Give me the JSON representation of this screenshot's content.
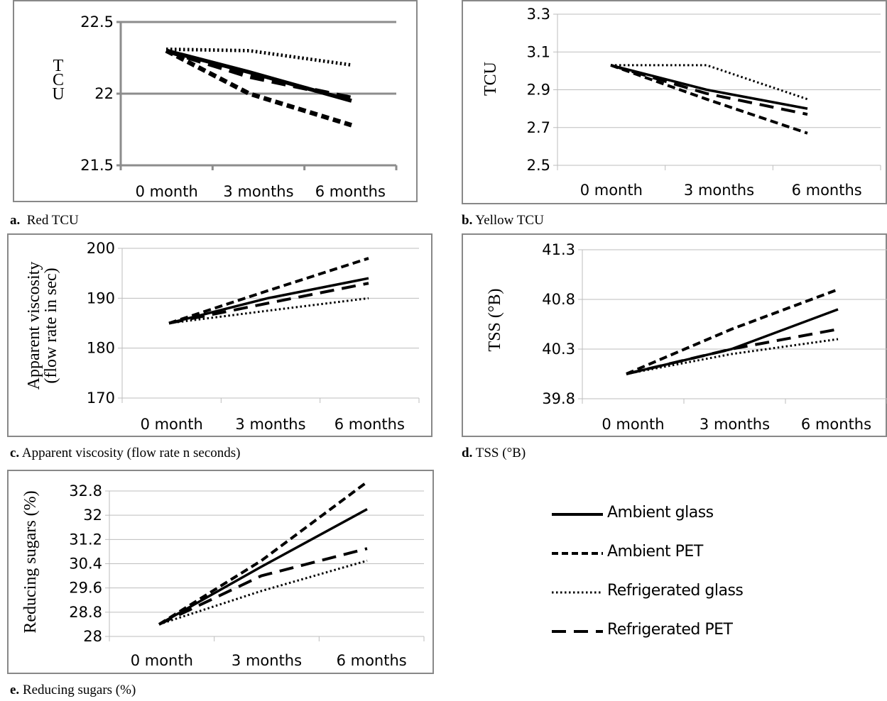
{
  "legend": [
    {
      "key": "ambient_glass",
      "label": "Ambient glass"
    },
    {
      "key": "ambient_pet",
      "label": "Ambient PET"
    },
    {
      "key": "refrigerated_glass",
      "label": "Refrigerated glass"
    },
    {
      "key": "refrigerated_pet",
      "label": "Refrigerated PET"
    }
  ],
  "chart_data": [
    {
      "id": "a",
      "type": "line",
      "caption_letter": "a.",
      "caption_text": "Red TCU",
      "ylabel": "TCU",
      "categories": [
        "0 month",
        "3 months",
        "6 months"
      ],
      "ylim": [
        21.5,
        22.5
      ],
      "yticks": [
        "21.5",
        "22",
        "22.5"
      ],
      "grid": true,
      "series": [
        {
          "name": "Ambient glass",
          "style": "solid",
          "values": [
            22.3,
            22.15,
            21.95
          ]
        },
        {
          "name": "Ambient PET",
          "style": "dash",
          "values": [
            22.3,
            22.0,
            21.78
          ]
        },
        {
          "name": "Refrigerated glass",
          "style": "dot",
          "values": [
            22.31,
            22.3,
            22.2
          ]
        },
        {
          "name": "Refrigerated PET",
          "style": "longdash",
          "values": [
            22.3,
            22.12,
            21.97
          ]
        }
      ]
    },
    {
      "id": "b",
      "type": "line",
      "caption_letter": "b.",
      "caption_text": "Yellow TCU",
      "ylabel": "TCU",
      "categories": [
        "0 month",
        "3 months",
        "6 months"
      ],
      "ylim": [
        2.5,
        3.3
      ],
      "yticks": [
        "2.5",
        "2.7",
        "2.9",
        "3.1",
        "3.3"
      ],
      "grid": true,
      "series": [
        {
          "name": "Ambient glass",
          "style": "solid",
          "values": [
            3.03,
            2.9,
            2.8
          ]
        },
        {
          "name": "Ambient PET",
          "style": "dash",
          "values": [
            3.03,
            2.85,
            2.67
          ]
        },
        {
          "name": "Refrigerated glass",
          "style": "dot",
          "values": [
            3.03,
            3.03,
            2.85
          ]
        },
        {
          "name": "Refrigerated PET",
          "style": "longdash",
          "values": [
            3.03,
            2.88,
            2.77
          ]
        }
      ]
    },
    {
      "id": "c",
      "type": "line",
      "caption_letter": "c.",
      "caption_text": "Apparent viscosity (flow rate n seconds)",
      "ylabel": "Apparent viscosity (flow rate in sec)",
      "categories": [
        "0 month",
        "3 months",
        "6 months"
      ],
      "ylim": [
        170,
        200
      ],
      "yticks": [
        "170",
        "180",
        "190",
        "200"
      ],
      "grid": true,
      "series": [
        {
          "name": "Ambient glass",
          "style": "solid",
          "values": [
            185,
            190,
            194
          ]
        },
        {
          "name": "Ambient PET",
          "style": "dash",
          "values": [
            185,
            191.5,
            198
          ]
        },
        {
          "name": "Refrigerated glass",
          "style": "dot",
          "values": [
            185,
            187.5,
            190
          ]
        },
        {
          "name": "Refrigerated PET",
          "style": "longdash",
          "values": [
            185,
            189,
            193
          ]
        }
      ]
    },
    {
      "id": "d",
      "type": "line",
      "caption_letter": "d.",
      "caption_text": "TSS (°B)",
      "ylabel": "TSS (°B)",
      "categories": [
        "0 month",
        "3 months",
        "6 months"
      ],
      "ylim": [
        39.8,
        41.3
      ],
      "yticks": [
        "39.8",
        "40.3",
        "40.8",
        "41.3"
      ],
      "grid": true,
      "series": [
        {
          "name": "Ambient glass",
          "style": "solid",
          "values": [
            40.05,
            40.3,
            40.7
          ]
        },
        {
          "name": "Ambient PET",
          "style": "dash",
          "values": [
            40.05,
            40.5,
            40.9
          ]
        },
        {
          "name": "Refrigerated glass",
          "style": "dot",
          "values": [
            40.05,
            40.25,
            40.4
          ]
        },
        {
          "name": "Refrigerated PET",
          "style": "longdash",
          "values": [
            40.05,
            40.3,
            40.5
          ]
        }
      ]
    },
    {
      "id": "e",
      "type": "line",
      "caption_letter": "e.",
      "caption_text": "Reducing sugars (%)",
      "ylabel": "Reducing sugars (%)",
      "categories": [
        "0 month",
        "3 months",
        "6 months"
      ],
      "ylim": [
        28,
        32.8
      ],
      "yticks": [
        "28",
        "28.8",
        "29.6",
        "30.4",
        "31.2",
        "32",
        "32.8"
      ],
      "grid": true,
      "series": [
        {
          "name": "Ambient glass",
          "style": "solid",
          "values": [
            28.4,
            30.3,
            32.2
          ]
        },
        {
          "name": "Ambient PET",
          "style": "dash",
          "values": [
            28.4,
            30.5,
            33.1
          ]
        },
        {
          "name": "Refrigerated glass",
          "style": "dot",
          "values": [
            28.4,
            29.5,
            30.5
          ]
        },
        {
          "name": "Refrigerated PET",
          "style": "longdash",
          "values": [
            28.4,
            30.0,
            30.9
          ]
        }
      ]
    }
  ]
}
